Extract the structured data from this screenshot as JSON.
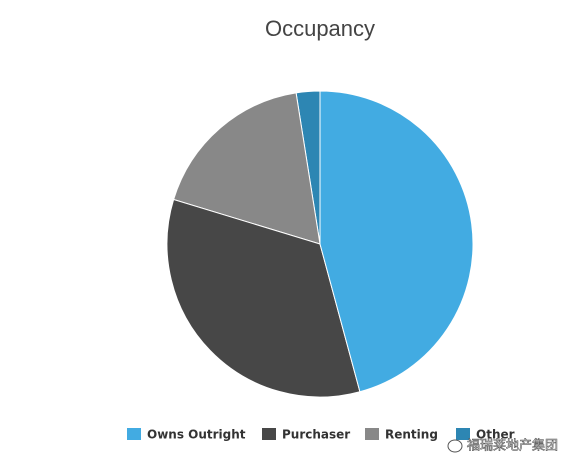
{
  "chart_data": {
    "type": "pie",
    "title": "Occupancy",
    "categories": [
      "Owns Outright",
      "Purchaser",
      "Renting",
      "Other"
    ],
    "values": [
      45.8,
      33.9,
      17.8,
      2.5
    ],
    "colors": [
      "#42abe2",
      "#474747",
      "#888888",
      "#2d86b3"
    ]
  },
  "watermark": "福瑞莱地产集团"
}
